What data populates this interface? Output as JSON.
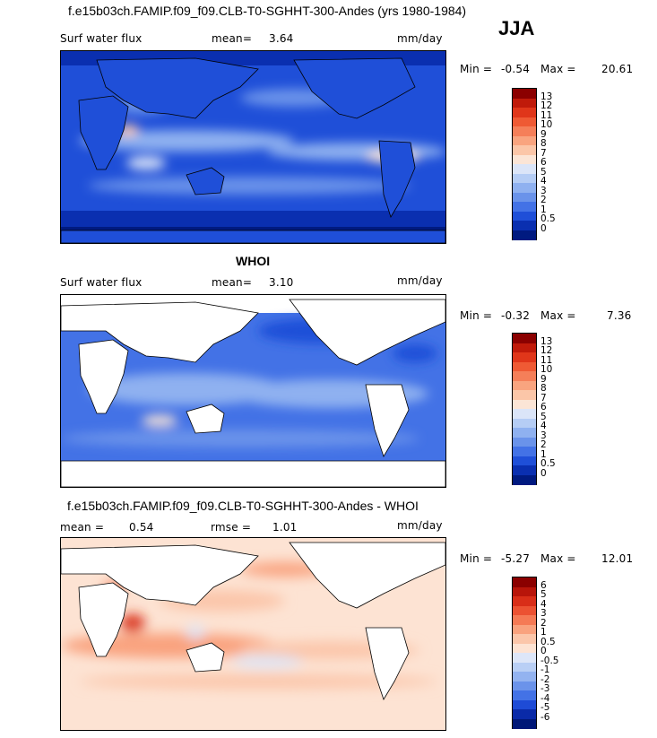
{
  "header": {
    "title": "f.e15b03ch.FAMIP.f09_f09.CLB-T0-SGHHT-300-Andes (yrs 1980-1984)",
    "season": "JJA"
  },
  "panels": [
    {
      "id": "model",
      "left_label": "Surf water flux",
      "stat_label": "mean=",
      "stat_value": "3.64",
      "units": "mm/day",
      "min_label": "Min =",
      "min_value": "-0.54",
      "max_label": "Max =",
      "max_value": "20.61",
      "colorbar": {
        "ticks": [
          "13",
          "12",
          "11",
          "10",
          "9",
          "8",
          "7",
          "6",
          "5",
          "4",
          "3",
          "2",
          "1",
          "0.5",
          "0"
        ],
        "colors": [
          "#8b0000",
          "#c01a0a",
          "#e0361a",
          "#ef5a34",
          "#f57f59",
          "#f9a47f",
          "#fbc6a8",
          "#fbe5d6",
          "#dbe5f8",
          "#b5cdf5",
          "#8fb1f0",
          "#6a93ea",
          "#4372e6",
          "#1f4fd8",
          "#0a2fb0",
          "#001a80"
        ]
      }
    },
    {
      "id": "obs",
      "subtitle": "WHOI",
      "left_label": "Surf water flux",
      "stat_label": "mean=",
      "stat_value": "3.10",
      "units": "mm/day",
      "min_label": "Min =",
      "min_value": "-0.32",
      "max_label": "Max =",
      "max_value": "7.36",
      "colorbar": {
        "ticks": [
          "13",
          "12",
          "11",
          "10",
          "9",
          "8",
          "7",
          "6",
          "5",
          "4",
          "3",
          "2",
          "1",
          "0.5",
          "0"
        ],
        "colors": [
          "#8b0000",
          "#c01a0a",
          "#e0361a",
          "#ef5a34",
          "#f57f59",
          "#f9a47f",
          "#fbc6a8",
          "#fbe5d6",
          "#dbe5f8",
          "#b5cdf5",
          "#8fb1f0",
          "#6a93ea",
          "#4372e6",
          "#1f4fd8",
          "#0a2fb0",
          "#001a80"
        ]
      }
    },
    {
      "id": "diff",
      "subtitle": "f.e15b03ch.FAMIP.f09_f09.CLB-T0-SGHHT-300-Andes - WHOI",
      "left_label": "mean =",
      "left_value": "0.54",
      "stat_label": "rmse =",
      "stat_value": "1.01",
      "units": "mm/day",
      "min_label": "Min =",
      "min_value": "-5.27",
      "max_label": "Max =",
      "max_value": "12.01",
      "colorbar": {
        "ticks": [
          "6",
          "5",
          "4",
          "3",
          "2",
          "1",
          "0.5",
          "0",
          "-0.5",
          "-1",
          "-2",
          "-3",
          "-4",
          "-5",
          "-6"
        ],
        "colors": [
          "#8b0000",
          "#b8150a",
          "#d92e18",
          "#ec5232",
          "#f57a55",
          "#f9a27e",
          "#fbc6aa",
          "#fde3d3",
          "#dde6f8",
          "#b9cff5",
          "#93b3f0",
          "#6b93ea",
          "#4372e6",
          "#1e4bd6",
          "#0a2aa8",
          "#001777"
        ]
      }
    }
  ]
}
